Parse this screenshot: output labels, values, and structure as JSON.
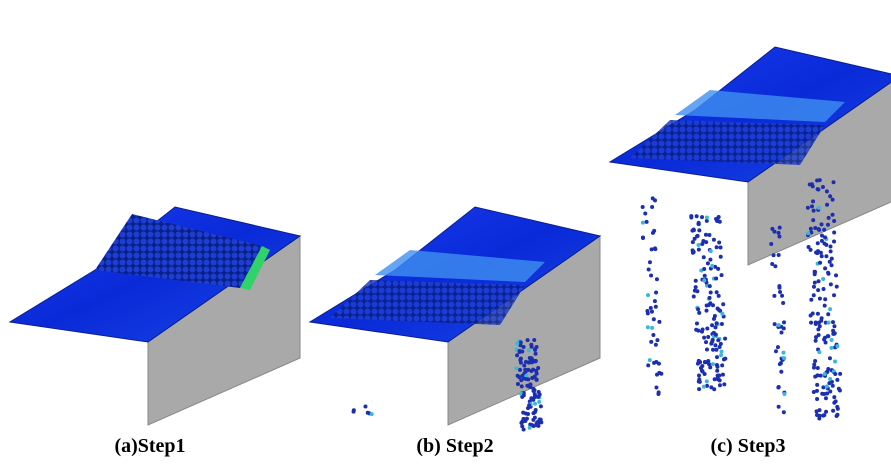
{
  "figure": {
    "panels": [
      {
        "caption": "(a)Step1"
      },
      {
        "caption": "(b) Step2"
      },
      {
        "caption": "(c) Step3"
      }
    ]
  }
}
